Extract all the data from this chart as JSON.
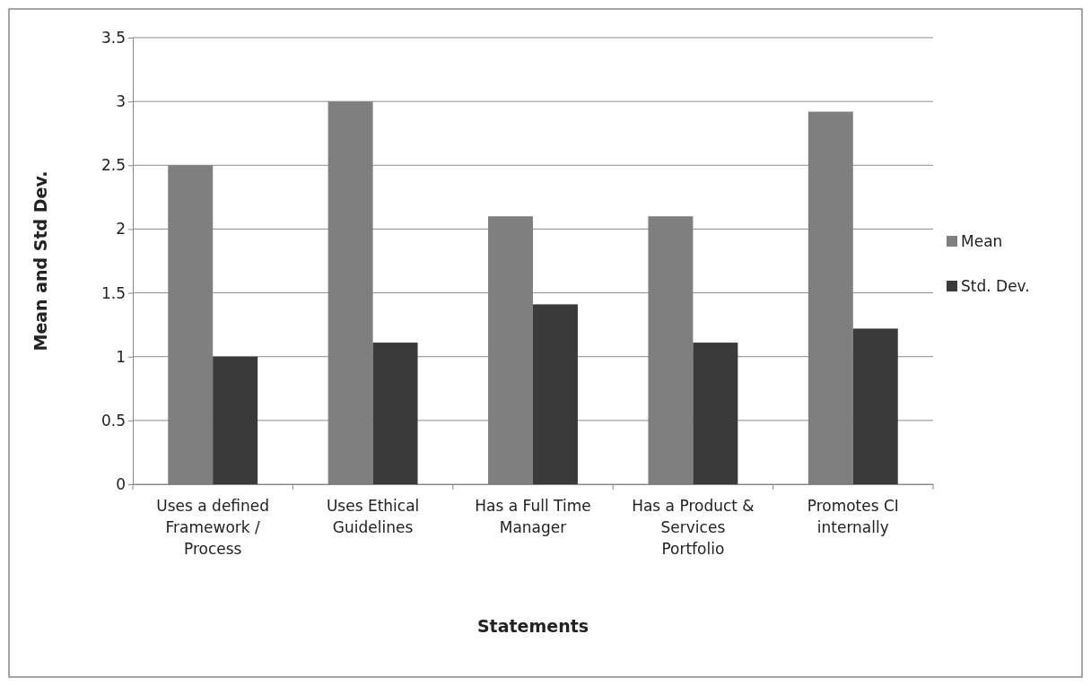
{
  "chart_data": {
    "type": "bar",
    "xlabel": "Statements",
    "ylabel": "Mean and Std Dev.",
    "categories": [
      "Uses a defined Framework / Process",
      "Uses Ethical Guidelines",
      "Has a Full Time Manager",
      "Has a Product & Services Portfolio",
      "Promotes CI internally"
    ],
    "series": [
      {
        "name": "Mean",
        "color": "#7f7f7f",
        "values": [
          2.5,
          3.0,
          2.1,
          2.1,
          2.92
        ]
      },
      {
        "name": "Std. Dev.",
        "color": "#3a3a3a",
        "values": [
          1.0,
          1.11,
          1.41,
          1.11,
          1.22
        ]
      }
    ],
    "ylim": [
      0,
      3.5
    ],
    "yticks": [
      0,
      0.5,
      1,
      1.5,
      2,
      2.5,
      3,
      3.5
    ],
    "grid": "y",
    "legend": "right"
  }
}
